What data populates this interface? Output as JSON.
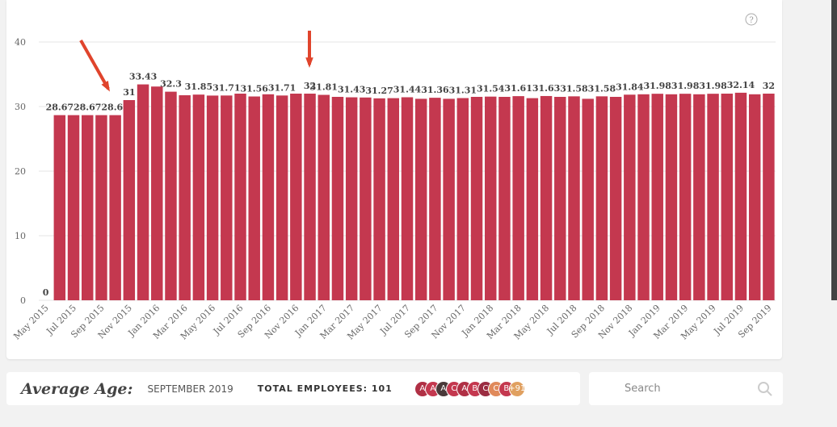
{
  "chart_data": {
    "type": "bar",
    "color": "#c4384f",
    "ylim": [
      0,
      40
    ],
    "yticks": [
      0,
      10,
      20,
      30,
      40
    ],
    "grid": true,
    "categories": [
      "May 2015",
      null,
      "Jul 2015",
      null,
      "Sep 2015",
      null,
      "Nov 2015",
      null,
      "Jan 2016",
      null,
      "Mar 2016",
      null,
      "May 2016",
      null,
      "Jul 2016",
      null,
      "Sep 2016",
      null,
      "Nov 2016",
      null,
      "Jan 2017",
      null,
      "Mar 2017",
      null,
      "May 2017",
      null,
      "Jul 2017",
      null,
      "Sep 2017",
      null,
      "Nov 2017",
      null,
      "Jan 2018",
      null,
      "Mar 2018",
      null,
      "May 2018",
      null,
      "Jul 2018",
      null,
      "Sep 2018",
      null,
      "Nov 2018",
      null,
      "Jan 2019",
      null,
      "Mar 2019",
      null,
      "May 2019",
      null,
      "Jul 2019",
      null,
      "Sep 2019"
    ],
    "values": [
      0,
      28.67,
      28.67,
      28.67,
      28.67,
      28.67,
      31,
      33.43,
      33.1,
      32.3,
      31.75,
      31.85,
      31.7,
      31.71,
      32.0,
      31.56,
      31.9,
      31.71,
      32.0,
      32,
      31.81,
      31.5,
      31.43,
      31.4,
      31.27,
      31.3,
      31.44,
      31.2,
      31.36,
      31.2,
      31.31,
      31.5,
      31.54,
      31.5,
      31.61,
      31.3,
      31.63,
      31.5,
      31.58,
      31.2,
      31.58,
      31.5,
      31.84,
      31.9,
      31.98,
      31.9,
      31.98,
      31.9,
      31.98,
      32.0,
      32.14,
      31.9,
      32
    ],
    "value_labels": [
      "0",
      "28.67",
      null,
      "28.67",
      null,
      "28.67",
      "31",
      "33.43",
      null,
      "32.3",
      null,
      "31.85",
      null,
      "31.71",
      null,
      "31.56",
      null,
      "31.71",
      null,
      "32",
      "31.81",
      null,
      "31.43",
      null,
      "31.27",
      null,
      "31.44",
      null,
      "31.36",
      null,
      "31.31",
      null,
      "31.54",
      null,
      "31.61",
      null,
      "31.63",
      null,
      "31.58",
      null,
      "31.58",
      null,
      "31.84",
      null,
      "31.98",
      null,
      "31.98",
      null,
      "31.98",
      null,
      "32.14",
      null,
      "32"
    ]
  },
  "help": "?",
  "footer": {
    "title": "Average Age:",
    "period": "SEPTEMBER 2019",
    "employees": "TOTAL EMPLOYEES: 101",
    "avatars": [
      "A",
      "A",
      "A",
      "C",
      "A",
      "B",
      "C",
      "C",
      "B",
      "+91"
    ],
    "search": "Search"
  }
}
